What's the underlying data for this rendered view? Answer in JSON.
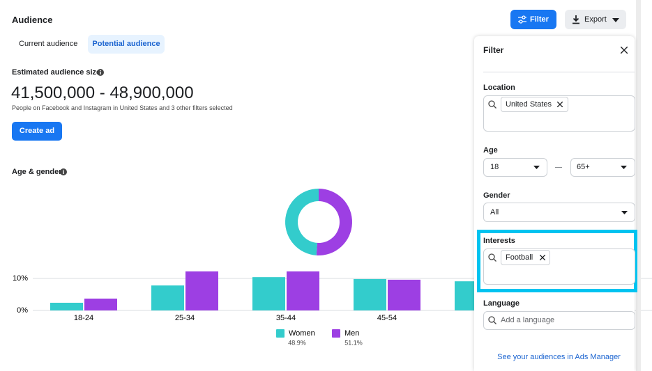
{
  "header": {
    "title": "Audience",
    "filter_button": "Filter",
    "export_button": "Export"
  },
  "tabs": [
    "Current audience",
    "Potential audience"
  ],
  "estimate": {
    "label": "Estimated audience size",
    "value": "41,500,000 - 48,900,000",
    "note": "People on Facebook and Instagram in United States and 3 other filters selected",
    "button": "Create ad"
  },
  "section_title": "Age & gender",
  "chart_data": [
    {
      "type": "pie",
      "values": [
        48.9,
        51.1
      ],
      "value_labels": [
        "48.9%",
        "51.1%"
      ],
      "colors": [
        "#33cccc",
        "#9d3fe3"
      ]
    },
    {
      "type": "bar",
      "categories": [
        "18-24",
        "25-34",
        "35-44",
        "45-54",
        null
      ],
      "series": [
        {
          "name": "Women",
          "color": "#33cccc",
          "values": [
            2.4,
            7.8,
            10.4,
            9.8,
            9.1
          ]
        },
        {
          "name": "Men",
          "color": "#9d3fe3",
          "values": [
            3.7,
            12.2,
            12.2,
            9.6,
            null
          ]
        }
      ],
      "ylim": [
        0,
        13
      ],
      "yticks": [
        {
          "value": 0,
          "label": "0%"
        },
        {
          "value": 10,
          "label": "10%"
        }
      ],
      "grid": true
    }
  ],
  "filter_panel": {
    "title": "Filter",
    "location": {
      "label": "Location",
      "tags": [
        "United States"
      ]
    },
    "age": {
      "label": "Age",
      "min": "18",
      "max": "65+"
    },
    "gender": {
      "label": "Gender",
      "value": "All"
    },
    "interests": {
      "label": "Interests",
      "tags": [
        "Football"
      ]
    },
    "language": {
      "label": "Language",
      "placeholder": "Add a language"
    },
    "link": "See your audiences in Ads Manager"
  }
}
